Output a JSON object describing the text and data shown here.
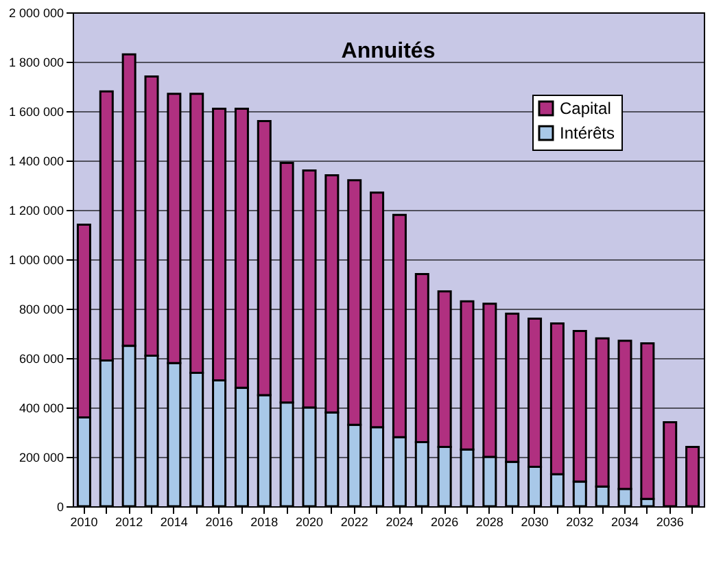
{
  "chart_data": {
    "type": "bar",
    "title": "Annuités",
    "stacked": true,
    "categories": [
      "2010",
      null,
      "2012",
      null,
      "2014",
      null,
      "2016",
      null,
      "2018",
      null,
      "2020",
      null,
      "2022",
      null,
      "2024",
      null,
      "2026",
      null,
      "2028",
      null,
      "2030",
      null,
      "2032",
      null,
      "2034",
      null,
      "2036",
      null
    ],
    "series": [
      {
        "name": "Intérêts",
        "color": "#a8c8e8",
        "values": [
          360000,
          590000,
          650000,
          610000,
          580000,
          540000,
          510000,
          480000,
          450000,
          420000,
          400000,
          380000,
          330000,
          320000,
          280000,
          260000,
          240000,
          230000,
          200000,
          180000,
          160000,
          130000,
          100000,
          80000,
          70000,
          30000,
          null,
          null
        ]
      },
      {
        "name": "Capital",
        "color": "#b03080",
        "values": [
          780000,
          1090000,
          1180000,
          1130000,
          1090000,
          1130000,
          1100000,
          1130000,
          1110000,
          970000,
          960000,
          960000,
          990000,
          950000,
          900000,
          680000,
          630000,
          600000,
          620000,
          600000,
          600000,
          610000,
          610000,
          600000,
          600000,
          630000,
          340000,
          240000
        ]
      }
    ],
    "ylim": [
      0,
      2000000
    ],
    "yticks": [
      0,
      {
        "value": 200000,
        "label": "200 000"
      },
      {
        "value": 400000,
        "label": "400 000"
      },
      {
        "value": 600000,
        "label": "600 000"
      },
      {
        "value": 800000,
        "label": "800 000"
      },
      {
        "value": 1000000,
        "label": "1 000 000"
      },
      {
        "value": 1200000,
        "label": "1 200 000"
      },
      {
        "value": 1400000,
        "label": "1 400 000"
      },
      {
        "value": 1600000,
        "label": "1 600 000"
      },
      {
        "value": 1800000,
        "label": "1 800 000"
      },
      {
        "value": 2000000,
        "label": "2 000 000"
      }
    ],
    "grid": "y",
    "legend": "top right"
  }
}
